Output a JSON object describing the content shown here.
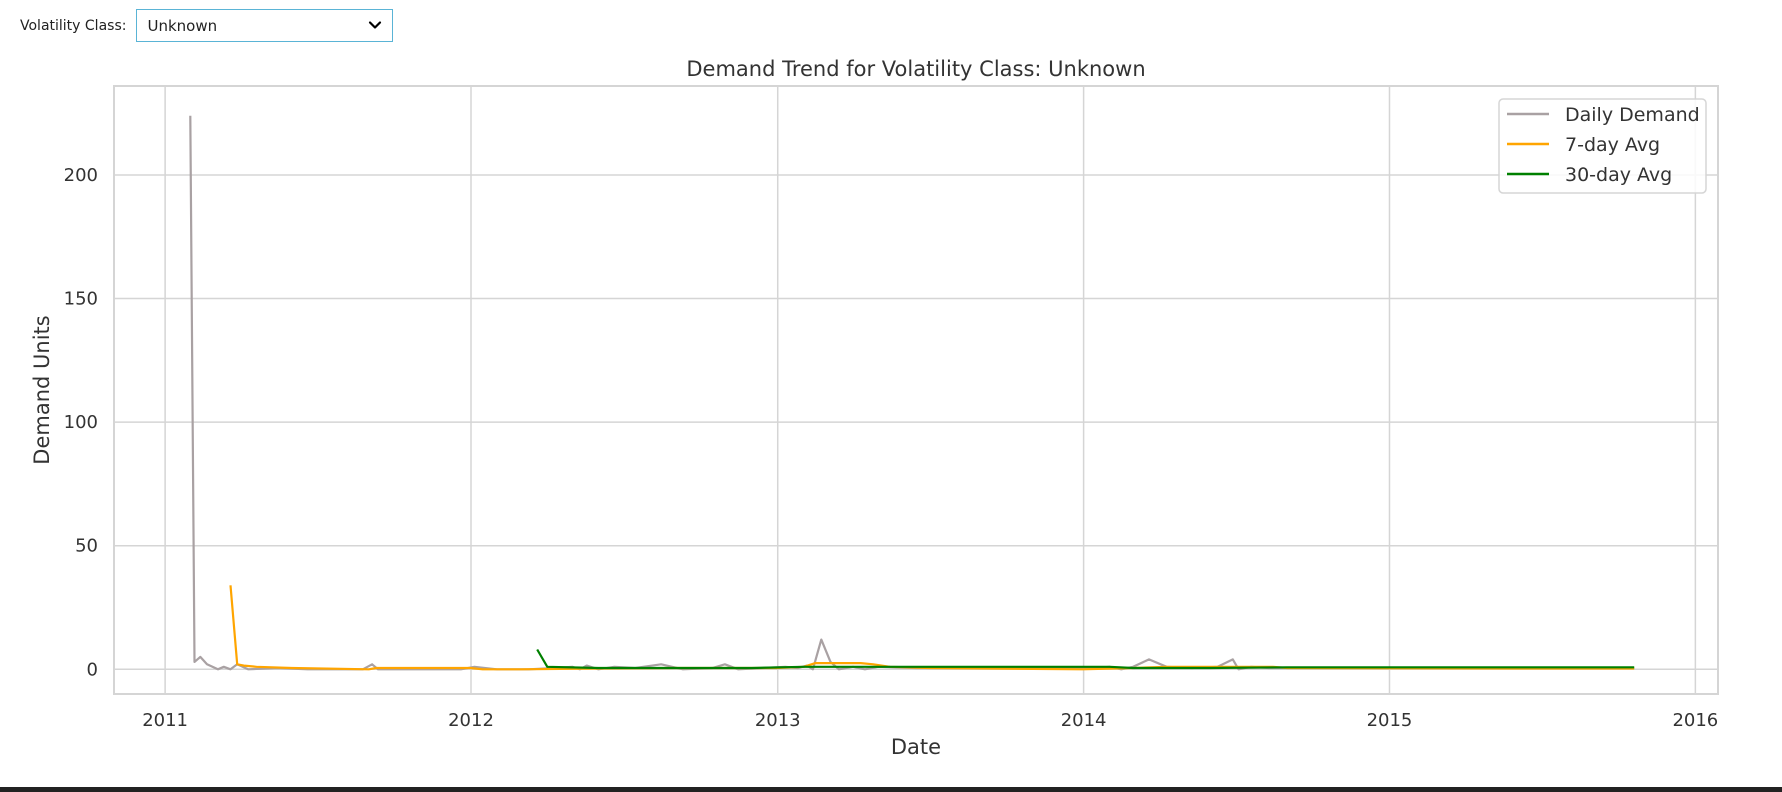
{
  "controls": {
    "volatility_label": "Volatility Class:",
    "volatility_value": "Unknown",
    "chevron_icon": "chevron-down-icon"
  },
  "colors": {
    "daily": "#a9a1a3",
    "avg7": "#ffa500",
    "avg30": "#008000",
    "grid": "#d5d5d5",
    "frame": "#d5d5d5",
    "text": "#333333",
    "select_border": "#5ab4d6"
  },
  "chart_data": {
    "type": "line",
    "title": "Demand Trend for Volatility Class: Unknown",
    "xlabel": "Date",
    "ylabel": "Demand Units",
    "xlim": [
      "2010-11-01",
      "2016-01-28"
    ],
    "ylim": [
      -10,
      236
    ],
    "x_ticks": [
      "2011",
      "2012",
      "2013",
      "2014",
      "2015",
      "2016"
    ],
    "x_tick_dates": [
      "2011-01-01",
      "2012-01-01",
      "2013-01-01",
      "2014-01-01",
      "2015-01-01",
      "2016-01-01"
    ],
    "y_ticks": [
      0,
      50,
      100,
      150,
      200
    ],
    "grid": true,
    "legend_position": "top-right",
    "series": [
      {
        "name": "Daily Demand",
        "key": "daily",
        "points": [
          [
            "2011-01-31",
            224
          ],
          [
            "2011-02-05",
            3
          ],
          [
            "2011-02-12",
            5
          ],
          [
            "2011-02-20",
            2
          ],
          [
            "2011-03-05",
            0
          ],
          [
            "2011-03-12",
            1
          ],
          [
            "2011-03-20",
            0
          ],
          [
            "2011-03-28",
            2
          ],
          [
            "2011-04-10",
            0
          ],
          [
            "2011-05-15",
            0.5
          ],
          [
            "2011-06-20",
            0
          ],
          [
            "2011-07-30",
            0
          ],
          [
            "2011-08-25",
            0
          ],
          [
            "2011-09-05",
            2
          ],
          [
            "2011-09-12",
            0
          ],
          [
            "2011-10-20",
            0
          ],
          [
            "2011-11-25",
            0
          ],
          [
            "2011-12-20",
            0
          ],
          [
            "2012-01-05",
            1
          ],
          [
            "2012-02-01",
            0
          ],
          [
            "2012-03-10",
            0
          ],
          [
            "2012-04-10",
            0.5
          ],
          [
            "2012-05-01",
            1
          ],
          [
            "2012-05-10",
            0
          ],
          [
            "2012-05-18",
            1.5
          ],
          [
            "2012-06-01",
            0
          ],
          [
            "2012-06-20",
            1
          ],
          [
            "2012-07-15",
            0.5
          ],
          [
            "2012-08-15",
            2
          ],
          [
            "2012-09-10",
            0
          ],
          [
            "2012-10-15",
            0.5
          ],
          [
            "2012-10-30",
            2
          ],
          [
            "2012-11-15",
            0
          ],
          [
            "2012-12-15",
            0.5
          ],
          [
            "2013-01-10",
            1
          ],
          [
            "2013-01-25",
            0.5
          ],
          [
            "2013-02-05",
            1.5
          ],
          [
            "2013-02-12",
            0
          ],
          [
            "2013-02-22",
            12
          ],
          [
            "2013-03-05",
            3
          ],
          [
            "2013-03-15",
            0
          ],
          [
            "2013-04-01",
            1
          ],
          [
            "2013-04-15",
            0
          ],
          [
            "2013-05-01",
            1
          ],
          [
            "2013-06-15",
            0.5
          ],
          [
            "2013-08-01",
            0.5
          ],
          [
            "2013-10-01",
            0.5
          ],
          [
            "2013-12-01",
            0.5
          ],
          [
            "2014-01-15",
            0.5
          ],
          [
            "2014-02-01",
            1
          ],
          [
            "2014-02-15",
            0
          ],
          [
            "2014-03-01",
            1
          ],
          [
            "2014-03-20",
            4
          ],
          [
            "2014-04-10",
            1
          ],
          [
            "2014-05-10",
            0.5
          ],
          [
            "2014-06-10",
            1
          ],
          [
            "2014-06-28",
            4
          ],
          [
            "2014-07-05",
            0
          ],
          [
            "2014-07-20",
            1
          ],
          [
            "2014-08-10",
            0.5
          ],
          [
            "2014-09-15",
            0.5
          ],
          [
            "2015-01-01",
            0.5
          ],
          [
            "2015-06-01",
            0.5
          ],
          [
            "2015-10-20",
            0.5
          ]
        ]
      },
      {
        "name": "7-day Avg",
        "key": "avg7",
        "points": [
          [
            "2011-03-20",
            34
          ],
          [
            "2011-03-28",
            2
          ],
          [
            "2011-04-05",
            1.5
          ],
          [
            "2011-04-20",
            1
          ],
          [
            "2011-06-01",
            0.5
          ],
          [
            "2011-09-01",
            0
          ],
          [
            "2011-09-10",
            0.5
          ],
          [
            "2011-12-31",
            0.5
          ],
          [
            "2012-01-15",
            0
          ],
          [
            "2012-03-01",
            0
          ],
          [
            "2012-06-01",
            0.3
          ],
          [
            "2012-09-01",
            0.5
          ],
          [
            "2012-12-31",
            0.5
          ],
          [
            "2013-02-01",
            1
          ],
          [
            "2013-02-15",
            2.5
          ],
          [
            "2013-03-20",
            2.5
          ],
          [
            "2013-04-10",
            2.5
          ],
          [
            "2013-04-25",
            2
          ],
          [
            "2013-05-15",
            1
          ],
          [
            "2013-07-01",
            0.5
          ],
          [
            "2013-12-31",
            0
          ],
          [
            "2014-03-01",
            0.5
          ],
          [
            "2014-04-10",
            1
          ],
          [
            "2014-07-01",
            1
          ],
          [
            "2014-08-15",
            1
          ],
          [
            "2014-09-01",
            0.5
          ],
          [
            "2015-06-01",
            0.3
          ],
          [
            "2015-10-20",
            0.3
          ]
        ]
      },
      {
        "name": "30-day Avg",
        "key": "avg30",
        "points": [
          [
            "2012-03-20",
            8
          ],
          [
            "2012-04-01",
            1
          ],
          [
            "2012-06-01",
            0.5
          ],
          [
            "2012-09-01",
            0.5
          ],
          [
            "2012-12-01",
            0.5
          ],
          [
            "2013-02-01",
            1
          ],
          [
            "2013-04-01",
            1
          ],
          [
            "2013-06-01",
            1
          ],
          [
            "2013-09-01",
            1
          ],
          [
            "2013-12-31",
            1
          ],
          [
            "2014-02-01",
            1
          ],
          [
            "2014-03-01",
            0.5
          ],
          [
            "2014-06-01",
            0.5
          ],
          [
            "2014-09-01",
            0.8
          ],
          [
            "2015-01-01",
            0.8
          ],
          [
            "2015-06-01",
            0.8
          ],
          [
            "2015-10-20",
            0.8
          ]
        ]
      }
    ]
  }
}
